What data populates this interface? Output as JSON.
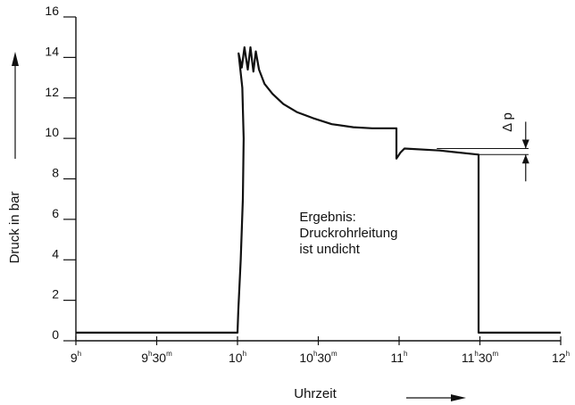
{
  "chart_data": {
    "type": "line",
    "title": "",
    "xlabel": "Uhrzeit",
    "ylabel": "Druck in bar",
    "xlim": [
      0,
      180
    ],
    "ylim": [
      0,
      16
    ],
    "grid": false,
    "x_ticks": [
      {
        "value": 0,
        "hour": "9",
        "min": ""
      },
      {
        "value": 30,
        "hour": "9",
        "min": "30"
      },
      {
        "value": 60,
        "hour": "10",
        "min": ""
      },
      {
        "value": 90,
        "hour": "10",
        "min": "30"
      },
      {
        "value": 120,
        "hour": "11",
        "min": ""
      },
      {
        "value": 150,
        "hour": "11",
        "min": "30"
      },
      {
        "value": 180,
        "hour": "12",
        "min": ""
      }
    ],
    "x_tick_unit_hour": "h",
    "x_tick_unit_min": "m",
    "y_ticks": [
      {
        "value": 0,
        "label": "0"
      },
      {
        "value": 2,
        "label": "2"
      },
      {
        "value": 4,
        "label": "4"
      },
      {
        "value": 6,
        "label": "6"
      },
      {
        "value": 8,
        "label": "8"
      },
      {
        "value": 10,
        "label": "10"
      },
      {
        "value": 12,
        "label": "12"
      },
      {
        "value": 14,
        "label": "14"
      },
      {
        "value": 16,
        "label": "16"
      }
    ],
    "series": [
      {
        "points": [
          [
            0,
            0.4
          ],
          [
            60,
            0.4
          ],
          [
            60.3,
            1.5
          ],
          [
            61.2,
            4.0
          ],
          [
            62.0,
            7.0
          ],
          [
            62.3,
            10.0
          ],
          [
            61.8,
            12.5
          ],
          [
            60.4,
            14.2
          ],
          [
            61.6,
            13.5
          ],
          [
            62.6,
            14.5
          ],
          [
            63.8,
            13.4
          ],
          [
            64.8,
            14.5
          ],
          [
            65.9,
            13.3
          ],
          [
            66.8,
            14.3
          ],
          [
            68,
            13.4
          ],
          [
            70,
            12.7
          ],
          [
            73,
            12.2
          ],
          [
            77,
            11.7
          ],
          [
            82,
            11.3
          ],
          [
            88,
            11.0
          ],
          [
            95,
            10.7
          ],
          [
            103,
            10.55
          ],
          [
            110,
            10.5
          ],
          [
            119,
            10.5
          ],
          [
            119,
            9.0
          ],
          [
            120.5,
            9.3
          ],
          [
            122,
            9.5
          ],
          [
            135,
            9.4
          ],
          [
            149.5,
            9.2
          ],
          [
            149.5,
            0.4
          ],
          [
            180,
            0.4
          ]
        ]
      }
    ],
    "annotations": [
      {
        "lines": [
          "Ergebnis:",
          "Druckrohrleitung",
          "ist undicht"
        ],
        "x": 83,
        "y": 5.9
      },
      {
        "text": "Δ p",
        "between": [
          9.2,
          9.5
        ],
        "at_x": 167
      }
    ]
  }
}
